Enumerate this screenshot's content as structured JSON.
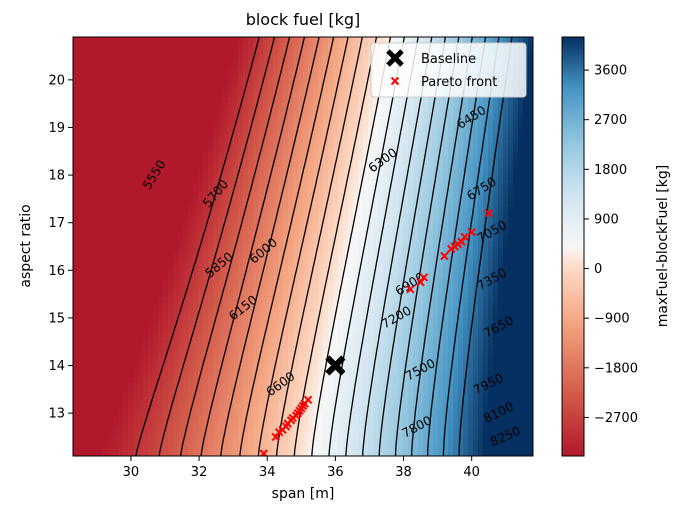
{
  "chart_data": {
    "type": "contour",
    "title": "block fuel [kg]",
    "xlabel": "span [m]",
    "ylabel": "aspect ratio",
    "xlim": [
      28.3,
      41.8
    ],
    "ylim": [
      12.1,
      20.9
    ],
    "xticks": [
      30,
      32,
      34,
      36,
      38,
      40
    ],
    "yticks": [
      13,
      14,
      15,
      16,
      17,
      18,
      19,
      20
    ],
    "grid": false,
    "legend_position": "top-right",
    "colorbar": {
      "label": "maxFuel-blockFuel [kg]",
      "range": [
        -3400,
        4200
      ],
      "ticks": [
        -2700,
        -1800,
        -900,
        0,
        900,
        1800,
        2700,
        3600
      ],
      "colormap": "RdBu"
    },
    "contour_levels": [
      5550,
      5700,
      5850,
      6000,
      6150,
      6300,
      6450,
      6600,
      6750,
      6900,
      7050,
      7200,
      7350,
      7500,
      7650,
      7800,
      7950,
      8100,
      8250
    ],
    "contour_labels": [
      {
        "text": "5550",
        "x": 30.7,
        "y": 18.0,
        "rotate": -58
      },
      {
        "text": "5700",
        "x": 32.5,
        "y": 17.6,
        "rotate": -50
      },
      {
        "text": "5850",
        "x": 32.6,
        "y": 16.1,
        "rotate": -40
      },
      {
        "text": "6000",
        "x": 33.9,
        "y": 16.4,
        "rotate": -40
      },
      {
        "text": "6150",
        "x": 33.3,
        "y": 15.2,
        "rotate": -38
      },
      {
        "text": "6300",
        "x": 37.4,
        "y": 18.3,
        "rotate": -36
      },
      {
        "text": "6450",
        "x": 40.0,
        "y": 19.2,
        "rotate": -32
      },
      {
        "text": "6600",
        "x": 34.4,
        "y": 13.6,
        "rotate": -36
      },
      {
        "text": "6750",
        "x": 40.3,
        "y": 17.7,
        "rotate": -32
      },
      {
        "text": "6900",
        "x": 38.2,
        "y": 15.7,
        "rotate": -32
      },
      {
        "text": "7050",
        "x": 40.6,
        "y": 16.8,
        "rotate": -30
      },
      {
        "text": "7200",
        "x": 37.8,
        "y": 15.0,
        "rotate": -30
      },
      {
        "text": "7350",
        "x": 40.6,
        "y": 15.8,
        "rotate": -30
      },
      {
        "text": "7500",
        "x": 38.5,
        "y": 13.9,
        "rotate": -28
      },
      {
        "text": "7650",
        "x": 40.8,
        "y": 14.8,
        "rotate": -28
      },
      {
        "text": "7800",
        "x": 38.4,
        "y": 12.7,
        "rotate": -28
      },
      {
        "text": "7950",
        "x": 40.5,
        "y": 13.6,
        "rotate": -26
      },
      {
        "text": "8100",
        "x": 40.8,
        "y": 13.0,
        "rotate": -26
      },
      {
        "text": "8250",
        "x": 41.0,
        "y": 12.5,
        "rotate": -24
      }
    ],
    "series": [
      {
        "name": "Baseline",
        "marker": "X",
        "color": "#000000",
        "x": [
          36.0
        ],
        "y": [
          14.0
        ]
      },
      {
        "name": "Pareto front",
        "marker": "x",
        "color": "#ff0000",
        "x": [
          33.9,
          34.25,
          34.35,
          34.45,
          34.55,
          34.6,
          34.7,
          34.75,
          34.85,
          34.9,
          34.95,
          35.0,
          35.05,
          35.1,
          35.2,
          38.2,
          38.5,
          38.6,
          39.2,
          39.4,
          39.5,
          39.6,
          39.7,
          39.8,
          40.0,
          40.5
        ],
        "y": [
          12.15,
          12.5,
          12.6,
          12.65,
          12.72,
          12.78,
          12.85,
          12.9,
          12.95,
          13.0,
          13.05,
          13.1,
          13.15,
          13.2,
          13.28,
          15.6,
          15.75,
          15.85,
          16.3,
          16.45,
          16.5,
          16.55,
          16.6,
          16.7,
          16.8,
          17.2
        ]
      }
    ]
  }
}
